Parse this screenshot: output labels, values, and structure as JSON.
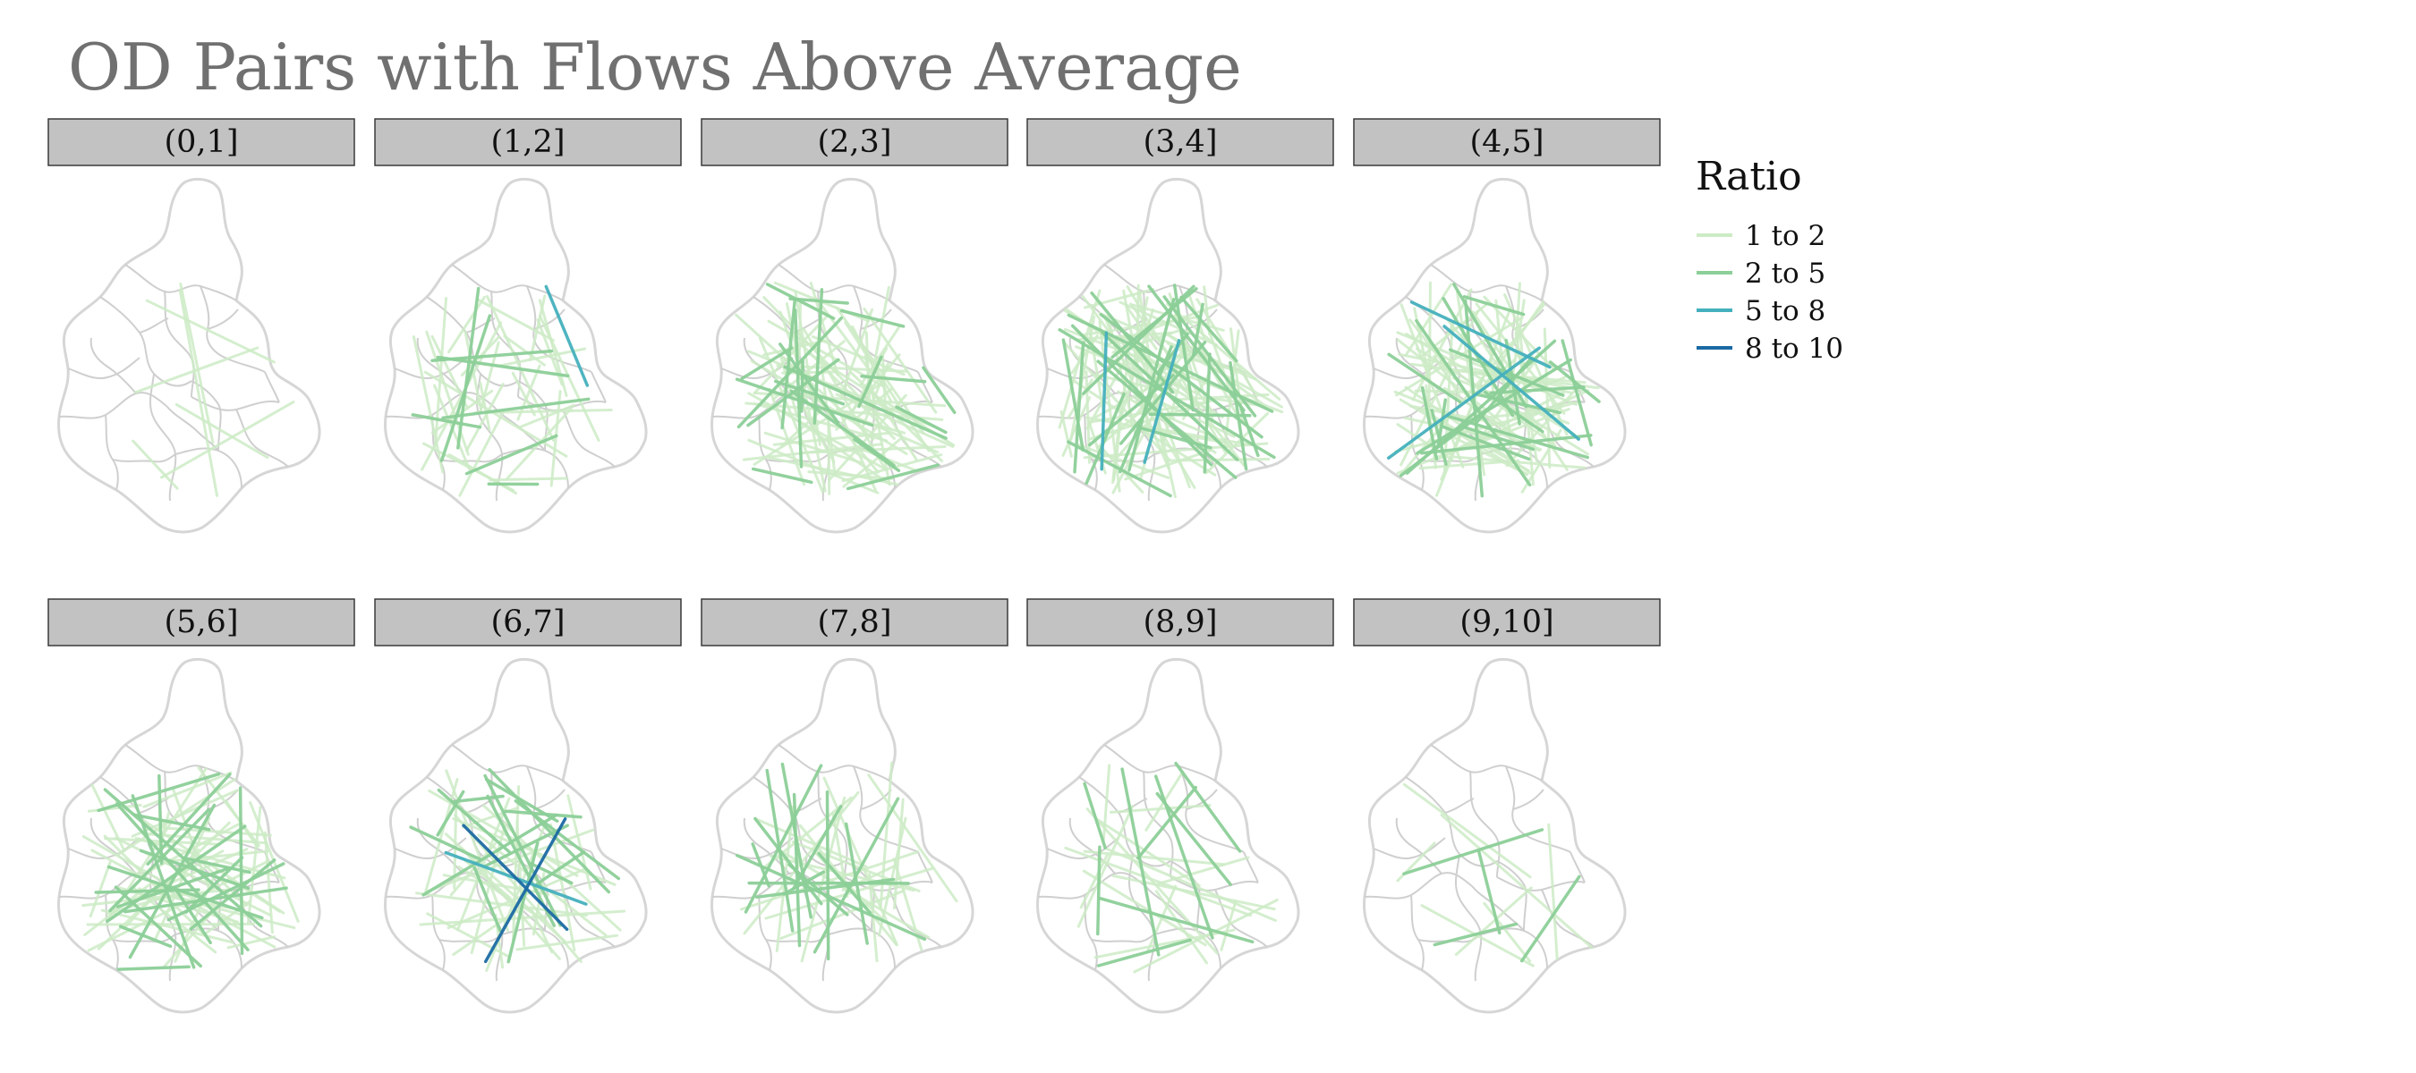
{
  "chart_data": {
    "type": "faceted-flow-map",
    "title": "OD Pairs with Flows Above Average",
    "legend": {
      "title": "Ratio",
      "position": "right",
      "items": [
        {
          "label": "1 to 2",
          "color": "#cdebc5"
        },
        {
          "label": "2 to 5",
          "color": "#8ccf98"
        },
        {
          "label": "5 to 8",
          "color": "#45b0bd"
        },
        {
          "label": "8 to 10",
          "color": "#1b6aa3"
        }
      ]
    },
    "panels": [
      {
        "label": "(0,1]",
        "flows": [
          [
            0,
            4
          ],
          [
            0,
            3
          ]
        ]
      },
      {
        "label": "(1,2]",
        "flows": [
          [
            0,
            32
          ],
          [
            1,
            8
          ],
          [
            2,
            1
          ]
        ]
      },
      {
        "label": "(2,3]",
        "flows": [
          [
            0,
            66
          ],
          [
            1,
            22
          ]
        ]
      },
      {
        "label": "(3,4]",
        "flows": [
          [
            0,
            84
          ],
          [
            1,
            28
          ],
          [
            2,
            2
          ]
        ]
      },
      {
        "label": "(4,5]",
        "flows": [
          [
            0,
            64
          ],
          [
            1,
            24
          ],
          [
            2,
            3
          ]
        ]
      },
      {
        "label": "(5,6]",
        "flows": [
          [
            0,
            46
          ],
          [
            1,
            24
          ]
        ]
      },
      {
        "label": "(6,7]",
        "flows": [
          [
            0,
            32
          ],
          [
            1,
            16
          ],
          [
            2,
            1
          ],
          [
            3,
            2
          ]
        ]
      },
      {
        "label": "(7,8]",
        "flows": [
          [
            0,
            22
          ],
          [
            1,
            16
          ]
        ]
      },
      {
        "label": "(8,9]",
        "flows": [
          [
            0,
            18
          ],
          [
            1,
            9
          ]
        ]
      },
      {
        "label": "(9,10]",
        "flows": [
          [
            0,
            7
          ],
          [
            1,
            4
          ]
        ]
      }
    ]
  }
}
